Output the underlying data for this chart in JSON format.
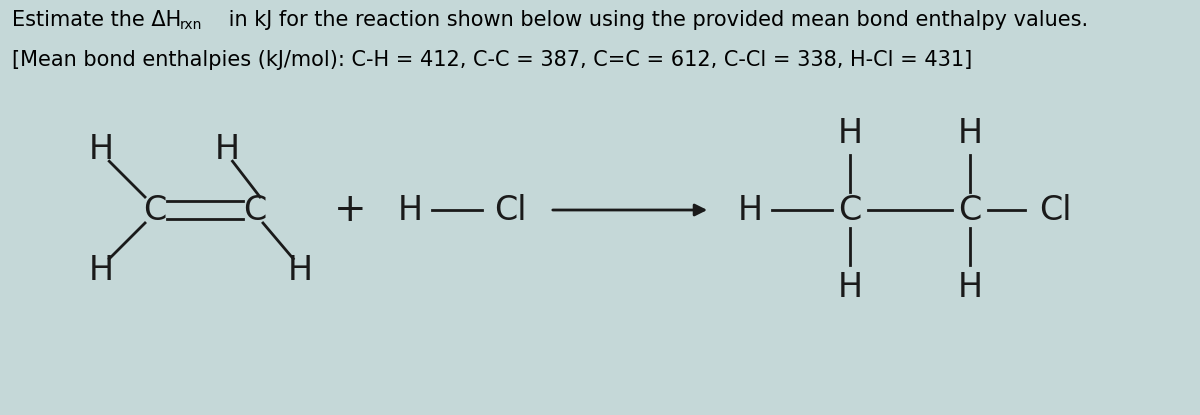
{
  "bg_color": "#c5d8d8",
  "title_line1a": "Estimate the ΔH",
  "title_line1_sub": "rxn",
  "title_line1b": " in kJ for the reaction shown below using the provided mean bond enthalpy values.",
  "title_line2": "[Mean bond enthalpies (kJ/mol): C-H = 412, C-C = 387, C=C = 612, C-Cl = 338, H-Cl = 431]",
  "font_size_title": 15,
  "font_size_mol": 24,
  "lw": 2.0,
  "col": "#1a1a1a"
}
